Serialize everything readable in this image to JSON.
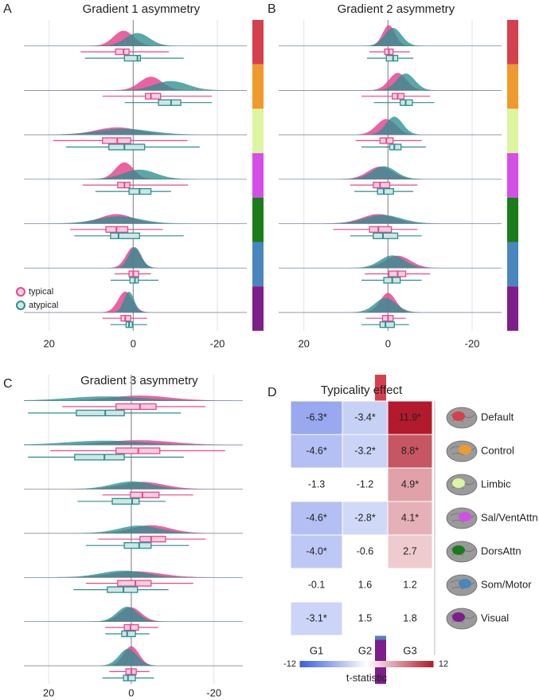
{
  "chart_data": [
    {
      "type": "raincloud",
      "panel_label": "A",
      "title": "Gradient 1 asymmetry",
      "xlim": [
        26,
        -27
      ],
      "xticks": [
        20,
        0,
        -20
      ],
      "grid": true,
      "series": [
        {
          "name": "typical",
          "color": "#e8468f",
          "values": [
            [
              -8.5,
              1,
              2.3,
              4.2,
              12.5
            ],
            [
              -18.7,
              -6.5,
              -4.2,
              -2.9,
              7.3
            ],
            [
              -12.9,
              0.6,
              3.8,
              7.3,
              19
            ],
            [
              -13,
              0.8,
              2.1,
              3.7,
              12
            ],
            [
              -7,
              1.3,
              4,
              6.5,
              15
            ],
            [
              -4.2,
              -1.3,
              0,
              1,
              4.4
            ],
            [
              -3.3,
              0.6,
              1.9,
              2.9,
              7.3
            ]
          ]
        },
        {
          "name": "atypical",
          "color": "#2b8f8f",
          "values": [
            [
              -12,
              -1.7,
              -1,
              2.1,
              11.5
            ],
            [
              -18.7,
              -11.3,
              -9,
              -6,
              2
            ],
            [
              -15.8,
              -2.7,
              2.1,
              5.8,
              16
            ],
            [
              -9,
              -4.2,
              -1.5,
              1,
              9
            ],
            [
              -12,
              -1.5,
              3.5,
              5.4,
              14
            ],
            [
              -6,
              -1.2,
              -0.4,
              0.8,
              5.4
            ],
            [
              -3.3,
              0.2,
              1,
              1.7,
              5.4
            ]
          ]
        }
      ]
    },
    {
      "type": "raincloud",
      "panel_label": "B",
      "title": "Gradient 2 asymmetry",
      "xlim": [
        26,
        -27
      ],
      "xticks": [
        20,
        0,
        -20
      ],
      "grid": true,
      "series": [
        {
          "color": "#e8468f",
          "values": [
            [
              -5.2,
              -1.2,
              -0.2,
              0.8,
              4.4
            ],
            [
              -10,
              -3.8,
              -2.3,
              -1,
              6.3
            ],
            [
              -8,
              -1.2,
              0.4,
              1.9,
              7.7
            ],
            [
              -7,
              -0.4,
              1.9,
              3.5,
              9
            ],
            [
              -7,
              -0.8,
              2.3,
              4.4,
              13
            ],
            [
              -10,
              -4.2,
              -2.3,
              -0.2,
              5.5
            ],
            [
              -4.2,
              -1.2,
              0,
              1.3,
              5.3
            ]
          ]
        },
        {
          "color": "#2b8f8f",
          "values": [
            [
              -6,
              -2.3,
              -1.2,
              0.4,
              5
            ],
            [
              -11,
              -5.8,
              -4.2,
              -2.9,
              3.4
            ],
            [
              -9,
              -3.1,
              -1.5,
              -0.4,
              6.3
            ],
            [
              -6,
              -1.3,
              1,
              2.5,
              8
            ],
            [
              -8,
              -2.3,
              1.2,
              3.5,
              9
            ],
            [
              -8,
              -2.9,
              -1,
              1,
              6.3
            ],
            [
              -5,
              -1.5,
              0.6,
              1.9,
              6.3
            ]
          ]
        }
      ]
    },
    {
      "type": "raincloud",
      "panel_label": "C",
      "title": "Gradient 3 asymmetry",
      "xlim": [
        26,
        -27
      ],
      "xticks": [
        20,
        0,
        -20
      ],
      "grid": true,
      "series": [
        {
          "color": "#e8468f",
          "values": [
            [
              -17.9,
              -6,
              -2.1,
              3.7,
              16.7
            ],
            [
              -22.7,
              -6.9,
              -1.7,
              3.7,
              19.6
            ],
            [
              -15,
              -6.7,
              -2.7,
              0.2,
              7
            ],
            [
              -18,
              -8.3,
              -4.8,
              -2.1,
              8
            ],
            [
              -15,
              -4.8,
              -1,
              3.3,
              11
            ],
            [
              -6.5,
              -1.7,
              0.2,
              1.7,
              6.3
            ],
            [
              -4.4,
              -1.2,
              0,
              1.3,
              5.3
            ]
          ]
        },
        {
          "color": "#2b8f8f",
          "values": [
            [
              -12,
              1.7,
              6.3,
              13.3,
              25
            ],
            [
              -12.7,
              1.7,
              6.5,
              13.7,
              25
            ],
            [
              -8.3,
              -1.9,
              -0.2,
              4.6,
              13
            ],
            [
              -14,
              -4.8,
              -1.9,
              1.7,
              11
            ],
            [
              -9,
              -1.5,
              1.9,
              5.8,
              14
            ],
            [
              -4.4,
              -1,
              1,
              2.3,
              6.3
            ],
            [
              -5.5,
              -1,
              0.8,
              1.9,
              7
            ]
          ]
        }
      ]
    },
    {
      "type": "heatmap",
      "panel_label": "D",
      "title": "Typicality effect",
      "columns": [
        "G1",
        "G2",
        "G3"
      ],
      "rows": [
        {
          "name": "Default",
          "color": "#d6404e"
        },
        {
          "name": "Control",
          "color": "#ef9a2d"
        },
        {
          "name": "Limbic",
          "color": "#dcf5a0"
        },
        {
          "name": "Sal/VentAttn",
          "color": "#d64ee8"
        },
        {
          "name": "DorsAttn",
          "color": "#1a7d1a"
        },
        {
          "name": "Som/Motor",
          "color": "#4a86bd"
        },
        {
          "name": "Visual",
          "color": "#7d1e8a"
        }
      ],
      "values": [
        [
          -6.3,
          -3.4,
          11.9
        ],
        [
          -4.6,
          -3.2,
          8.8
        ],
        [
          -1.3,
          -1.2,
          4.9
        ],
        [
          -4.6,
          -2.8,
          4.1
        ],
        [
          -4.0,
          -0.6,
          2.7
        ],
        [
          -0.1,
          1.6,
          1.2
        ],
        [
          -3.1,
          1.5,
          1.8
        ]
      ],
      "value_labels": [
        [
          "-6.3*",
          "-3.4*",
          "11.9*"
        ],
        [
          "-4.6*",
          "-3.2*",
          "8.8*"
        ],
        [
          "-1.3",
          "-1.2",
          "4.9*"
        ],
        [
          "-4.6*",
          "-2.8*",
          "4.1*"
        ],
        [
          "-4.0*",
          "-0.6",
          "2.7"
        ],
        [
          "-0.1",
          "1.6",
          "1.2"
        ],
        [
          "-3.1*",
          "1.5",
          "1.8"
        ]
      ],
      "shaded": [
        [
          true,
          true,
          true
        ],
        [
          true,
          true,
          true
        ],
        [
          false,
          false,
          true
        ],
        [
          true,
          true,
          true
        ],
        [
          true,
          false,
          true
        ],
        [
          false,
          false,
          false
        ],
        [
          true,
          false,
          false
        ]
      ],
      "colorbar": {
        "lim": [
          -12,
          12
        ],
        "ticks": [
          -12,
          12
        ],
        "label": "t-statistic"
      }
    }
  ]
}
